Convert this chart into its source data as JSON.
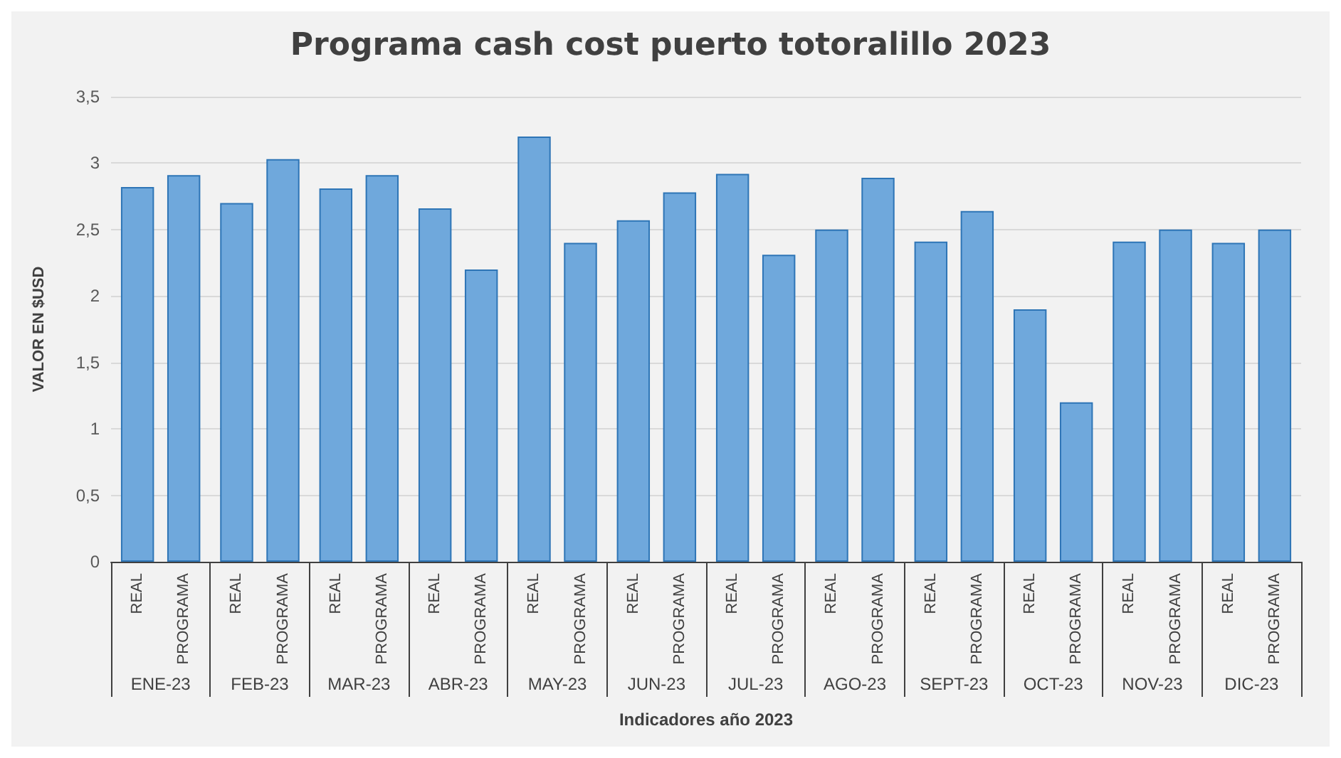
{
  "chart_data": {
    "type": "bar",
    "title": "Programa cash cost puerto totoralillo 2023",
    "xlabel": "Indicadores año 2023",
    "ylabel": "VALOR EN $USD",
    "categories": [
      "ENE-23",
      "FEB-23",
      "MAR-23",
      "ABR-23",
      "MAY-23",
      "JUN-23",
      "JUL-23",
      "AGO-23",
      "SEPT-23",
      "OCT-23",
      "NOV-23",
      "DIC-23"
    ],
    "series": [
      {
        "name": "REAL",
        "color": "#6fa8dc",
        "values": [
          2.82,
          2.7,
          2.81,
          2.66,
          3.2,
          2.57,
          2.92,
          2.5,
          2.41,
          1.9,
          2.41,
          2.4
        ]
      },
      {
        "name": "PROGRAMA",
        "color": "#6fa8dc",
        "values": [
          2.91,
          3.03,
          2.91,
          2.2,
          2.4,
          2.78,
          2.31,
          2.89,
          2.64,
          1.2,
          2.5,
          2.5
        ]
      }
    ],
    "ylim": [
      0,
      3.5
    ],
    "yticks": [
      {
        "value": 0,
        "label": "0"
      },
      {
        "value": 0.5,
        "label": "0,5"
      },
      {
        "value": 1,
        "label": "1"
      },
      {
        "value": 1.5,
        "label": "1,5"
      },
      {
        "value": 2,
        "label": "2"
      },
      {
        "value": 2.5,
        "label": "2,5"
      },
      {
        "value": 3,
        "label": "3"
      },
      {
        "value": 3.5,
        "label": "3,5"
      }
    ],
    "grid": "y",
    "legend": false
  }
}
